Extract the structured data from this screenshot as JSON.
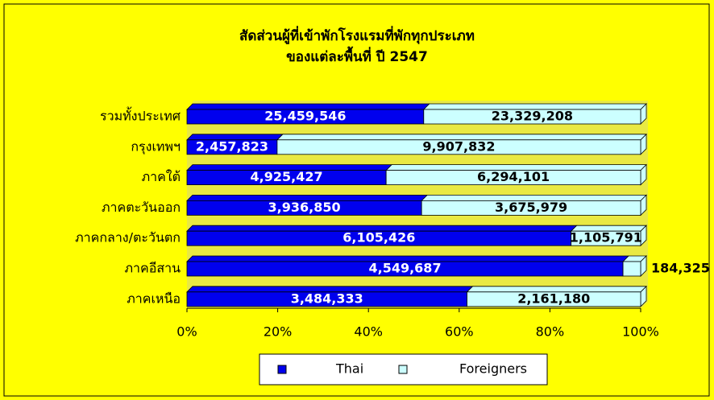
{
  "chart_data": {
    "type": "bar",
    "orientation": "horizontal",
    "stacked": "percent",
    "title": "สัดส่วนผู้ที่เข้าพักโรงแรมที่พักทุกประเภท",
    "subtitle": "ของแต่ละพื้นที่ ปี 2547",
    "categories": [
      "รวมทั้งประเทศ",
      "กรุงเทพฯ",
      "ภาคใต้",
      "ภาคตะวันออก",
      "ภาคกลาง/ตะวันตก",
      "ภาคอีสาน",
      "ภาคเหนือ"
    ],
    "series": [
      {
        "name": "Thai",
        "color": "#0000ee",
        "values": [
          25459546,
          2457823,
          4925427,
          3936850,
          6105426,
          4549687,
          3484333
        ],
        "value_labels": [
          "25,459,546",
          "2,457,823",
          "4,925,427",
          "3,936,850",
          "6,105,426",
          "4,549,687",
          "3,484,333"
        ]
      },
      {
        "name": "Foreigners",
        "color": "#ccffff",
        "values": [
          23329208,
          9907832,
          6294101,
          3675979,
          1105791,
          184325,
          2161180
        ],
        "value_labels": [
          "23,329,208",
          "9,907,832",
          "6,294,101",
          "3,675,979",
          "1,105,791",
          "184,325",
          "2,161,180"
        ]
      }
    ],
    "xlim": [
      0,
      100
    ],
    "xticks": [
      {
        "value": 0,
        "label": "0%"
      },
      {
        "value": 20,
        "label": "20%"
      },
      {
        "value": 40,
        "label": "40%"
      },
      {
        "value": 60,
        "label": "60%"
      },
      {
        "value": 80,
        "label": "80%"
      },
      {
        "value": 100,
        "label": "100%"
      }
    ],
    "legend": "bottom"
  }
}
